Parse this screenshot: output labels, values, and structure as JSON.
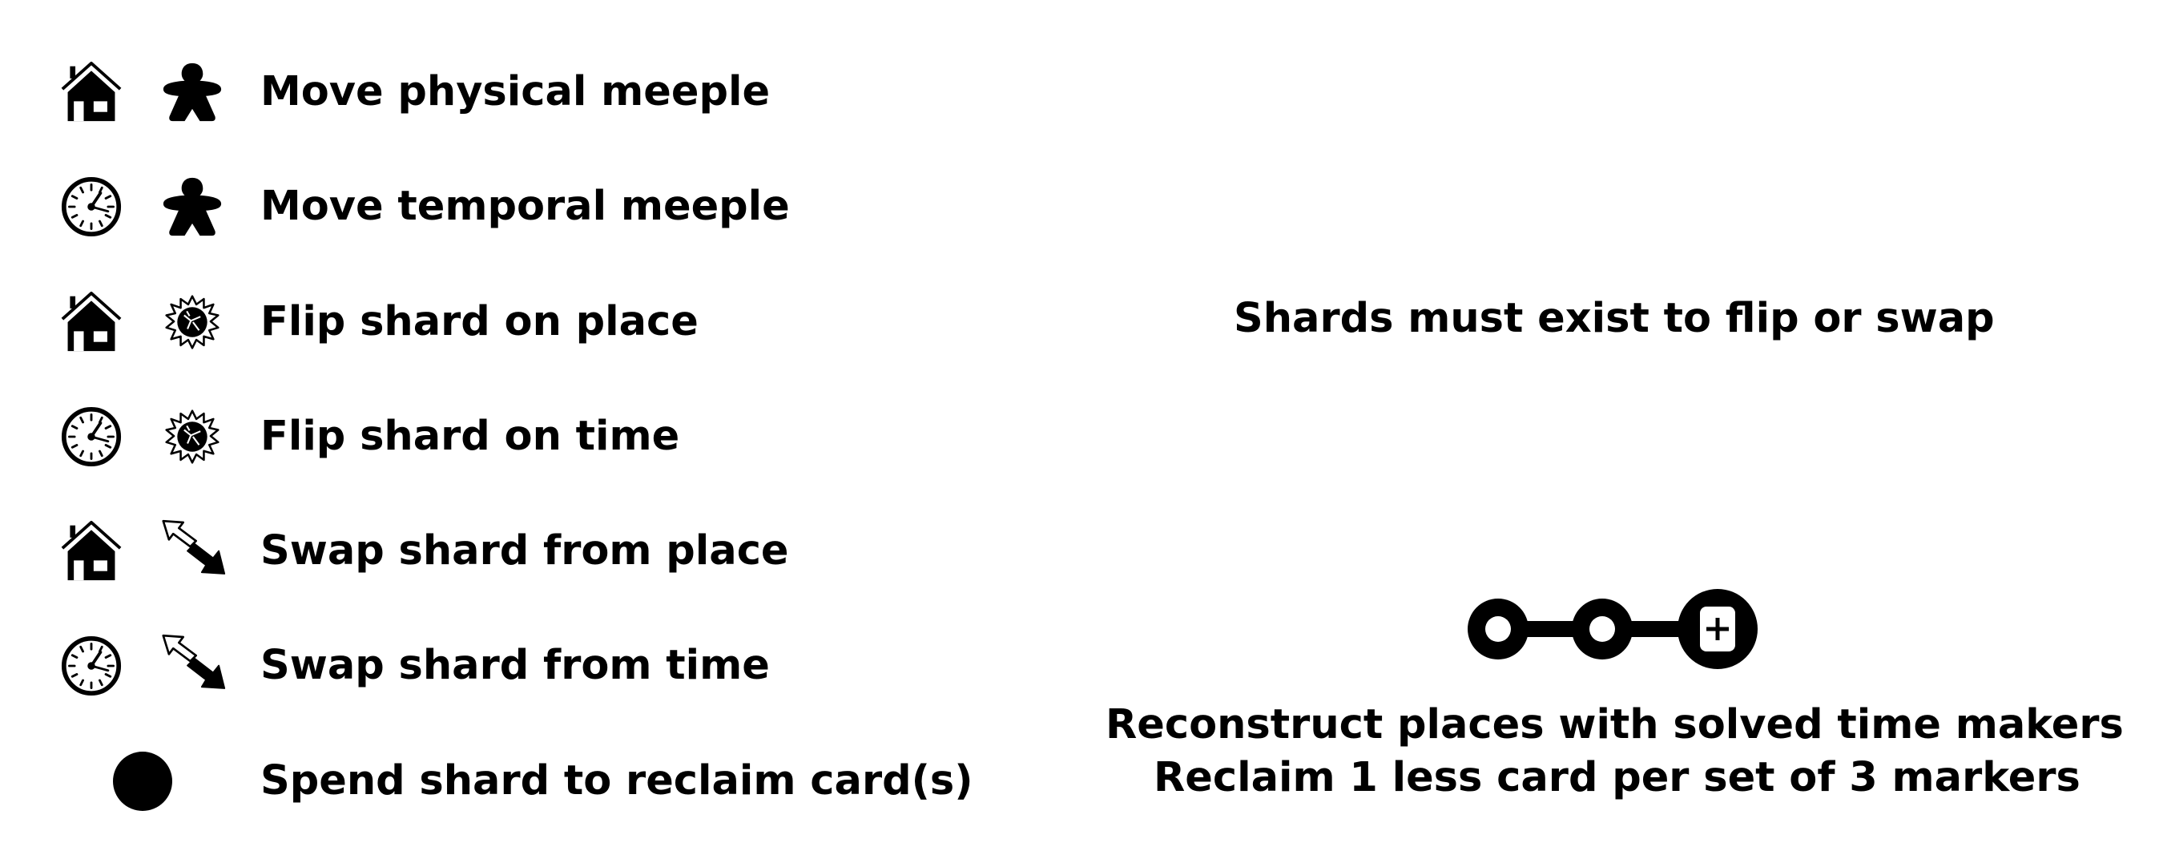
{
  "legend": {
    "rows": [
      {
        "primary_icon": "house-icon",
        "action_icon": "meeple-icon",
        "label": "Move physical meeple"
      },
      {
        "primary_icon": "clock-icon",
        "action_icon": "meeple-icon",
        "label": "Move temporal meeple"
      },
      {
        "primary_icon": "house-icon",
        "action_icon": "shard-icon",
        "label": "Flip shard on place"
      },
      {
        "primary_icon": "clock-icon",
        "action_icon": "shard-icon",
        "label": "Flip shard on time"
      },
      {
        "primary_icon": "house-icon",
        "action_icon": "swap-arrows-icon",
        "label": "Swap shard from place"
      },
      {
        "primary_icon": "clock-icon",
        "action_icon": "swap-arrows-icon",
        "label": "Swap shard from time"
      },
      {
        "primary_icon": "",
        "action_icon": "filled-circle-icon",
        "label": "Spend shard to reclaim card(s)"
      }
    ]
  },
  "notes": {
    "shard_note": "Shards must exist to flip or swap",
    "track_icon": "marker-track-icon",
    "reconstruct_line1": "Reconstruct places with solved time makers",
    "reconstruct_line2": "Reclaim 1 less card per set of 3 markers"
  },
  "colors": {
    "ink": "#000000",
    "paper": "#ffffff"
  }
}
